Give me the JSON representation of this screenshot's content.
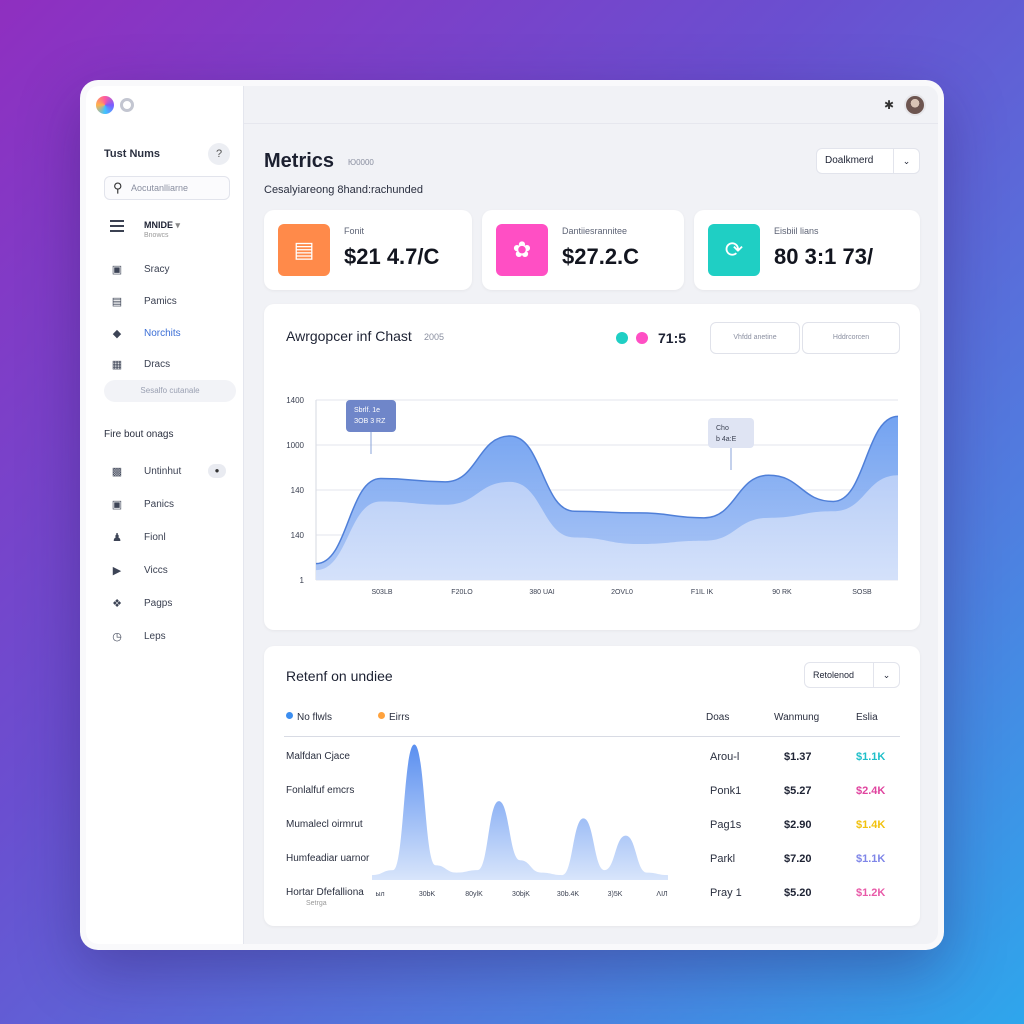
{
  "sidebar": {
    "title": "Tust Nums",
    "help_icon": "?",
    "search_placeholder": "Aocutanlliarne",
    "menu_head": {
      "title": "MNIDE",
      "subtitle": "Bnowcs"
    },
    "items": [
      {
        "label": "Sracy",
        "icon": "bag-icon"
      },
      {
        "label": "Pamics",
        "icon": "doc-icon"
      },
      {
        "label": "Norchits",
        "icon": "chat-icon",
        "active": true
      },
      {
        "label": "Dracs",
        "icon": "grid-icon"
      }
    ],
    "pill": "Sesalfo cutanale",
    "section": "Fire bout onags",
    "section_items": [
      {
        "label": "Untinhut",
        "icon": "calendar-icon"
      },
      {
        "label": "Panics",
        "icon": "briefcase-icon"
      },
      {
        "label": "Fionl",
        "icon": "user-icon"
      },
      {
        "label": "Viccs",
        "icon": "video-icon"
      },
      {
        "label": "Pagps",
        "icon": "bird-icon"
      },
      {
        "label": "Leps",
        "icon": "clock-icon"
      }
    ]
  },
  "header": {
    "title": "Metrics",
    "subtitle": "Ю0000",
    "description": "Cesalyiareong 8hand:rachunded",
    "dropdown": "Doalkmerd"
  },
  "kpis": [
    {
      "label": "Fonit",
      "value": "$21 4.7/C",
      "color": "#ff8a4a",
      "icon": "wallet-icon"
    },
    {
      "label": "Dantiiesrannitee",
      "value": "$27.2.C",
      "color": "#ff4fc4",
      "icon": "badge-icon"
    },
    {
      "label": "Eisbiil lians",
      "value": "80 3:1 73/",
      "color": "#1fcfc4",
      "icon": "refresh-icon"
    }
  ],
  "main_chart": {
    "title": "Awrgopcer inf Chast",
    "year": "2005",
    "legend_value": "71:5",
    "buttons": [
      "Vhfdd anetine",
      "Hddrcorcen"
    ],
    "tooltips": [
      {
        "line1": "Sbrlf. 1e",
        "line2": "ЗОВ 3 RZ"
      },
      {
        "line1": "Cho",
        "line2": "b 4a:E"
      }
    ]
  },
  "chart_data": {
    "type": "area",
    "x_ticks": [
      "S03LB",
      "F20LO",
      "380 UAI",
      "2OVL0",
      "F1IL IK",
      "90 RK",
      "SOSB"
    ],
    "y_ticks": [
      "1",
      "140",
      "140",
      "1000",
      "1400"
    ],
    "series": [
      {
        "name": "",
        "color": "#7aa6f0",
        "values": [
          100,
          620,
          600,
          880,
          420,
          410,
          380,
          640,
          480,
          1000
        ]
      },
      {
        "name": "",
        "color": "#c6d6f6",
        "values": [
          60,
          480,
          460,
          600,
          260,
          220,
          240,
          380,
          420,
          640
        ]
      }
    ]
  },
  "retention": {
    "title": "Retenf on undiee",
    "dropdown": "Retolenod",
    "headers": [
      "No flwls",
      "Eirrs",
      "Doas",
      "Wanmung",
      "Eslia"
    ],
    "header_colors": [
      "#3c8ef0",
      "#ffa23d"
    ],
    "x_ticks": [
      "ыл",
      "30bK",
      "80ylK",
      "30bjK",
      "30b.4K",
      "3)5K",
      "ΛIЛ"
    ],
    "rows": [
      {
        "name": "Malfdan Cjace",
        "c1": "Arou-l",
        "c2": "$1.37",
        "c3": "$1.1K",
        "c3color": "#1fbfc9"
      },
      {
        "name": "Fonlalfuf emcrs",
        "c1": "Ponk1",
        "c2": "$5.27",
        "c3": "$2.4K",
        "c3color": "#e0449f"
      },
      {
        "name": "Mumalecl oirmrut",
        "c1": "Pag1s",
        "c2": "$2.90",
        "c3": "$1.4K",
        "c3color": "#f2c20f"
      },
      {
        "name": "Humfeadiar uarnor",
        "c1": "Parkl",
        "c2": "$7.20",
        "c3": "$1.1K",
        "c3color": "#7f86e8"
      },
      {
        "name": "Hortar Dfefalliona",
        "sub": "Setrga",
        "c1": "Pray 1",
        "c2": "$5.20",
        "c3": "$1.2K",
        "c3color": "#e85aa8"
      }
    ],
    "chart_data": {
      "type": "area",
      "values": [
        2,
        4,
        55,
        6,
        3,
        4,
        32,
        8,
        3,
        2,
        25,
        4,
        18,
        3,
        2
      ]
    }
  }
}
